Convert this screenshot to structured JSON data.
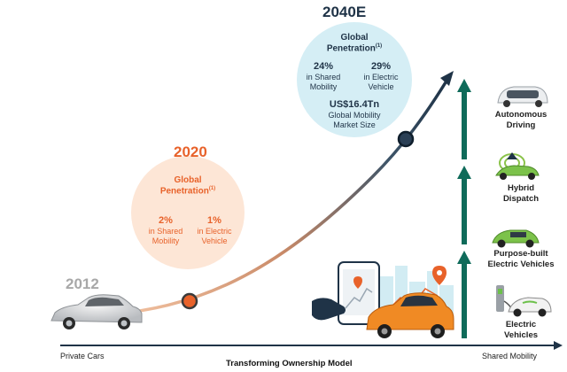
{
  "year_2012": "2012",
  "year_2020": "2020",
  "year_2040": "2040E",
  "circle_2020": {
    "title_line1": "Global",
    "title_line2": "Penetration",
    "footnote": "(1)",
    "stat_left_value": "2%",
    "stat_left_line1": "in Shared",
    "stat_left_line2": "Mobility",
    "stat_right_value": "1%",
    "stat_right_line1": "in Electric",
    "stat_right_line2": "Vehicle"
  },
  "circle_2040": {
    "title_line1": "Global",
    "title_line2": "Penetration",
    "footnote": "(1)",
    "stat_left_value": "24%",
    "stat_left_line1": "in Shared",
    "stat_left_line2": "Mobility",
    "stat_right_value": "29%",
    "stat_right_line1": "in Electric",
    "stat_right_line2": "Vehicle",
    "market_value": "US$16.4Tn",
    "market_line1": "Global Mobility",
    "market_line2": "Market Size"
  },
  "stages": [
    {
      "line1": "Autonomous",
      "line2": "Driving"
    },
    {
      "line1": "Hybrid",
      "line2": "Dispatch"
    },
    {
      "line1": "Purpose-built",
      "line2": "Electric Vehicles"
    },
    {
      "line1": "Electric",
      "line2": "Vehicles"
    }
  ],
  "axis": {
    "left_label": "Private Cars",
    "right_label": "Shared Mobility",
    "title": "Transforming Ownership Model"
  },
  "colors": {
    "orange": "#e8622a",
    "peach_circle": "#fde6d6",
    "blue_circle": "#d5eef5",
    "navy": "#1f3347",
    "teal_arrow": "#0f6b5a",
    "gray_year": "#a8a8a8"
  }
}
